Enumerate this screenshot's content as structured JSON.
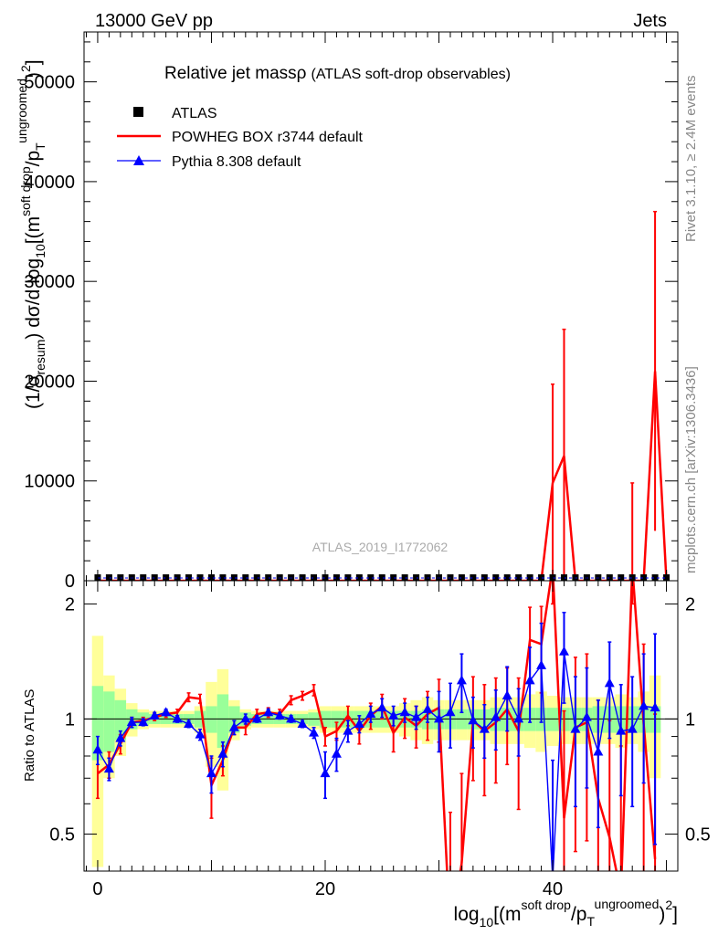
{
  "header": {
    "left": "13000 GeV pp",
    "right": "Jets"
  },
  "side_text": {
    "rivet": "Rivet 3.1.10, ≥ 2.4M events",
    "mcplots": "mcplots.cern.ch [arXiv:1306.3436]"
  },
  "plot_title": {
    "main": "Relative jet massρ",
    "sub": "(ATLAS soft-drop observables)"
  },
  "watermark": "ATLAS_2019_I1772062",
  "legend": [
    {
      "label": "ATLAS",
      "color": "#000000",
      "marker": "square"
    },
    {
      "label": "POWHEG BOX r3744 default",
      "color": "#ff0000",
      "marker": "line"
    },
    {
      "label": "Pythia 8.308 default",
      "color": "#0000ff",
      "marker": "triangle"
    }
  ],
  "axes": {
    "y_main_label_parts": {
      "a": "(1/σ",
      "a_sub": "resum",
      "b": ") dσ/d log",
      "b_sub": "10",
      "c": "[(m",
      "c_sup": "soft drop",
      "d": "/p",
      "d_sub": "T",
      "d_sup": "ungroomed",
      "e": ")",
      "e_sup": "2",
      "f": "]"
    },
    "y_ratio_label": "Ratio to ATLAS",
    "x_label_parts": {
      "a": "log",
      "a_sub": "10",
      "b": "[(m",
      "b_sup": "soft drop",
      "c": "/p",
      "c_sub": "T",
      "c_sup": "ungroomed",
      "d": ")",
      "d_sup": "2",
      "e": "]"
    }
  },
  "chart_data": [
    {
      "type": "line",
      "panel": "main",
      "xlim": [
        -1.2,
        51
      ],
      "ylim": [
        0,
        55000
      ],
      "x_ticks": [
        0,
        20,
        40
      ],
      "y_ticks": [
        0,
        10000,
        20000,
        30000,
        40000,
        50000
      ],
      "y_tick_labels": [
        "0",
        "10000",
        "20000",
        "30000",
        "40000",
        "50000"
      ],
      "series": [
        {
          "name": "POWHEG BOX r3744 default",
          "color": "#ff0000",
          "x": [
            0,
            1,
            2,
            3,
            4,
            5,
            6,
            7,
            8,
            9,
            10,
            11,
            12,
            13,
            14,
            15,
            16,
            17,
            18,
            19,
            20,
            21,
            22,
            23,
            24,
            25,
            26,
            27,
            28,
            29,
            30,
            31,
            32,
            33,
            34,
            35,
            36,
            37,
            38,
            39,
            40,
            41,
            42,
            43,
            44,
            45,
            46,
            47,
            48,
            49,
            50
          ],
          "y": [
            0,
            0,
            0,
            0,
            0,
            0,
            0,
            0,
            0,
            0,
            0,
            0,
            0,
            0,
            0,
            0,
            0,
            0,
            0,
            0,
            0,
            0,
            0,
            0,
            0,
            0,
            0,
            0,
            0,
            0,
            0,
            0,
            0,
            0,
            0,
            0,
            0,
            0,
            0,
            0,
            9800,
            12500,
            0,
            0,
            0,
            0,
            0,
            0,
            0,
            21000,
            0
          ],
          "err": [
            0,
            0,
            0,
            0,
            0,
            0,
            0,
            0,
            0,
            0,
            0,
            0,
            0,
            0,
            0,
            0,
            0,
            0,
            0,
            0,
            0,
            0,
            0,
            0,
            0,
            0,
            0,
            0,
            0,
            0,
            0,
            0,
            0,
            0,
            0,
            0,
            0,
            0,
            0,
            0,
            9900,
            12700,
            0,
            0,
            0,
            0,
            0,
            9800,
            0,
            16000,
            0
          ]
        },
        {
          "name": "ATLAS",
          "color": "#000000",
          "x": [
            0,
            1,
            2,
            3,
            4,
            5,
            6,
            7,
            8,
            9,
            10,
            11,
            12,
            13,
            14,
            15,
            16,
            17,
            18,
            19,
            20,
            21,
            22,
            23,
            24,
            25,
            26,
            27,
            28,
            29,
            30,
            31,
            32,
            33,
            34,
            35,
            36,
            37,
            38,
            39,
            40,
            41,
            42,
            43,
            44,
            45,
            46,
            47,
            48,
            49,
            50
          ],
          "y": [
            0,
            0,
            0,
            0,
            0,
            0,
            0,
            0,
            0,
            0,
            0,
            0,
            0,
            0,
            0,
            0,
            0,
            0,
            0,
            0,
            0,
            0,
            0,
            0,
            0,
            0,
            0,
            0,
            0,
            0,
            0,
            0,
            0,
            0,
            0,
            0,
            0,
            0,
            0,
            0,
            0,
            0,
            0,
            0,
            0,
            0,
            0,
            0,
            0,
            0,
            0
          ]
        }
      ]
    },
    {
      "type": "line",
      "panel": "ratio",
      "xlim": [
        -1.2,
        51
      ],
      "ylim": [
        0.4,
        2.3
      ],
      "x_ticks": [
        0,
        20,
        40
      ],
      "x_tick_labels": [
        "0",
        "20",
        "40"
      ],
      "y_ticks": [
        0.5,
        1,
        2
      ],
      "y_tick_labels": [
        "0.5",
        "1",
        "2"
      ],
      "x": [
        0,
        1,
        2,
        3,
        4,
        5,
        6,
        7,
        8,
        9,
        10,
        11,
        12,
        13,
        14,
        15,
        16,
        17,
        18,
        19,
        20,
        21,
        22,
        23,
        24,
        25,
        26,
        27,
        28,
        29,
        30,
        31,
        32,
        33,
        34,
        35,
        36,
        37,
        38,
        39,
        40,
        41,
        42,
        43,
        44,
        45,
        46,
        47,
        48,
        49
      ],
      "band_inner": [
        0.22,
        0.18,
        0.12,
        0.06,
        0.04,
        0.03,
        0.03,
        0.03,
        0.03,
        0.05,
        0.08,
        0.16,
        0.08,
        0.04,
        0.03,
        0.03,
        0.03,
        0.03,
        0.03,
        0.04,
        0.05,
        0.05,
        0.05,
        0.05,
        0.05,
        0.05,
        0.05,
        0.05,
        0.05,
        0.06,
        0.06,
        0.06,
        0.06,
        0.06,
        0.06,
        0.07,
        0.07,
        0.07,
        0.07,
        0.07,
        0.07,
        0.07,
        0.07,
        0.07,
        0.08,
        0.08,
        0.08,
        0.08,
        0.08,
        0.08
      ],
      "band_outer": [
        0.65,
        0.3,
        0.2,
        0.1,
        0.06,
        0.05,
        0.05,
        0.05,
        0.05,
        0.08,
        0.25,
        0.35,
        0.12,
        0.06,
        0.05,
        0.05,
        0.05,
        0.05,
        0.05,
        0.06,
        0.08,
        0.08,
        0.08,
        0.08,
        0.08,
        0.08,
        0.08,
        0.1,
        0.12,
        0.14,
        0.12,
        0.12,
        0.12,
        0.12,
        0.12,
        0.14,
        0.14,
        0.14,
        0.16,
        0.18,
        0.15,
        0.14,
        0.14,
        0.14,
        0.14,
        0.14,
        0.16,
        0.14,
        0.18,
        0.3
      ],
      "series": [
        {
          "name": "POWHEG BOX r3744 default",
          "color": "#ff0000",
          "y": [
            0.72,
            0.76,
            0.86,
            0.98,
            0.99,
            1.01,
            1.03,
            1.04,
            1.14,
            1.13,
            0.67,
            0.78,
            0.95,
            0.95,
            1.03,
            1.04,
            1.03,
            1.12,
            1.15,
            1.19,
            0.9,
            0.93,
            1.02,
            0.93,
            1.02,
            1.08,
            0.92,
            1.01,
            0.96,
            1.03,
            1.07,
            0.27,
            0.42,
            0.99,
            0.93,
            0.98,
            1.06,
            0.93,
            1.61,
            1.57,
            2.5,
            0.55,
            0.95,
            0.98,
            0.62,
            0.49,
            0.35,
            2.5,
            0.97,
            0.43
          ],
          "err": [
            0.1,
            0.06,
            0.05,
            0.03,
            0.02,
            0.02,
            0.02,
            0.02,
            0.03,
            0.03,
            0.12,
            0.07,
            0.04,
            0.04,
            0.03,
            0.03,
            0.03,
            0.03,
            0.03,
            0.04,
            0.05,
            0.05,
            0.06,
            0.07,
            0.08,
            0.08,
            0.1,
            0.12,
            0.12,
            0.15,
            0.2,
            0.3,
            0.3,
            0.3,
            0.3,
            0.3,
            0.3,
            0.35,
            0.35,
            0.4,
            0.5,
            0.5,
            0.5,
            0.5,
            0.5,
            0.5,
            0.5,
            0.5,
            0.6,
            0.6
          ]
        },
        {
          "name": "Pythia 8.308 default",
          "color": "#0000ff",
          "y": [
            0.83,
            0.74,
            0.89,
            0.98,
            0.98,
            1.02,
            1.04,
            1.0,
            0.97,
            0.91,
            0.72,
            0.81,
            0.95,
            1.0,
            1.0,
            1.04,
            1.02,
            1.0,
            0.97,
            0.92,
            0.72,
            0.81,
            0.93,
            0.97,
            1.03,
            1.07,
            1.02,
            1.04,
            1.01,
            1.06,
            1.0,
            1.04,
            1.26,
            0.99,
            0.94,
            1.01,
            1.15,
            1.0,
            1.26,
            1.38,
            0.38,
            1.5,
            0.94,
            1.01,
            0.82,
            1.24,
            0.93,
            0.94,
            1.08,
            1.07
          ],
          "err": [
            0.07,
            0.05,
            0.04,
            0.03,
            0.02,
            0.02,
            0.02,
            0.02,
            0.02,
            0.03,
            0.08,
            0.06,
            0.04,
            0.03,
            0.02,
            0.02,
            0.02,
            0.02,
            0.02,
            0.03,
            0.1,
            0.08,
            0.06,
            0.05,
            0.05,
            0.06,
            0.06,
            0.06,
            0.07,
            0.08,
            0.18,
            0.2,
            0.22,
            0.15,
            0.15,
            0.18,
            0.22,
            0.2,
            0.28,
            0.4,
            0.4,
            0.4,
            0.35,
            0.35,
            0.3,
            0.35,
            0.3,
            0.35,
            0.4,
            0.6
          ]
        }
      ]
    }
  ]
}
